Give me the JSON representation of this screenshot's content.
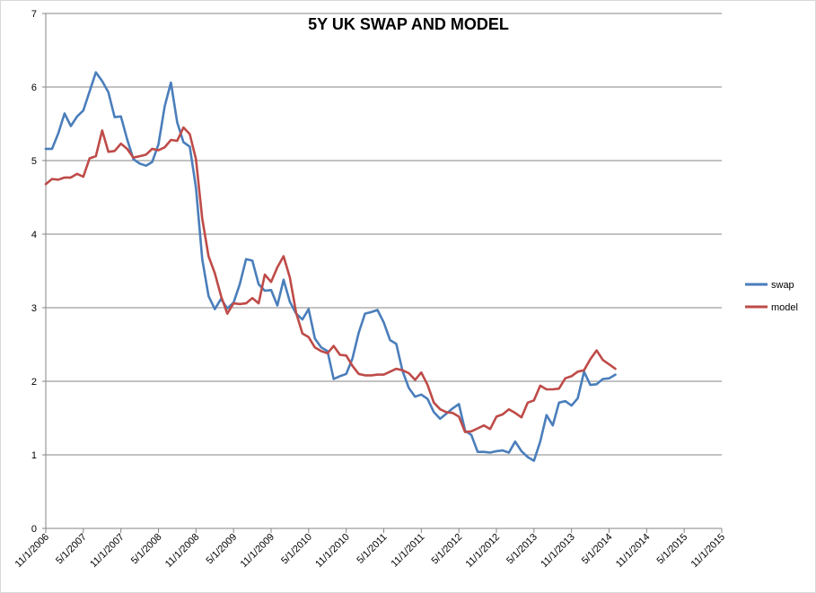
{
  "chart_data": {
    "type": "line",
    "title": "5Y UK SWAP AND MODEL",
    "xlabel": "",
    "ylabel": "",
    "ylim": [
      0,
      7
    ],
    "yticks": [
      0,
      1,
      2,
      3,
      4,
      5,
      6,
      7
    ],
    "xlim": [
      "11/1/2006",
      "11/1/2015"
    ],
    "xticks": [
      "11/1/2006",
      "5/1/2007",
      "11/1/2007",
      "5/1/2008",
      "11/1/2008",
      "5/1/2009",
      "11/1/2009",
      "5/1/2010",
      "11/1/2010",
      "5/1/2011",
      "11/1/2011",
      "5/1/2012",
      "11/1/2012",
      "5/1/2013",
      "11/1/2013",
      "5/1/2014",
      "11/1/2014",
      "5/1/2015",
      "11/1/2015"
    ],
    "grid": true,
    "legend_position": "right",
    "series": [
      {
        "name": "swap",
        "color": "#4a7ebb",
        "values": [
          5.16,
          5.16,
          5.37,
          5.64,
          5.47,
          5.6,
          5.68,
          5.94,
          6.2,
          6.08,
          5.93,
          5.59,
          5.6,
          5.29,
          5.02,
          4.96,
          4.93,
          4.98,
          5.22,
          5.74,
          6.06,
          5.52,
          5.25,
          5.19,
          4.63,
          3.66,
          3.16,
          2.98,
          3.12,
          2.99,
          3.07,
          3.32,
          3.66,
          3.64,
          3.32,
          3.23,
          3.24,
          3.03,
          3.38,
          3.08,
          2.92,
          2.84,
          2.98,
          2.58,
          2.46,
          2.41,
          2.03,
          2.07,
          2.1,
          2.31,
          2.66,
          2.92,
          2.94,
          2.97,
          2.8,
          2.56,
          2.51,
          2.14,
          1.91,
          1.79,
          1.82,
          1.76,
          1.58,
          1.49,
          1.56,
          1.63,
          1.69,
          1.33,
          1.27,
          1.04,
          1.04,
          1.03,
          1.05,
          1.06,
          1.03,
          1.18,
          1.05,
          0.97,
          0.92,
          1.18,
          1.54,
          1.4,
          1.71,
          1.73,
          1.67,
          1.77,
          2.13,
          1.95,
          1.96,
          2.03,
          2.04,
          2.09
        ]
      },
      {
        "name": "model",
        "color": "#be4b48",
        "values": [
          4.68,
          4.75,
          4.74,
          4.77,
          4.77,
          4.82,
          4.78,
          5.03,
          5.06,
          5.41,
          5.12,
          5.13,
          5.23,
          5.16,
          5.04,
          5.06,
          5.08,
          5.16,
          5.14,
          5.18,
          5.28,
          5.27,
          5.45,
          5.36,
          5.02,
          4.21,
          3.7,
          3.47,
          3.16,
          2.92,
          3.06,
          3.05,
          3.06,
          3.13,
          3.06,
          3.45,
          3.35,
          3.55,
          3.7,
          3.41,
          2.93,
          2.65,
          2.6,
          2.46,
          2.41,
          2.38,
          2.48,
          2.36,
          2.35,
          2.21,
          2.1,
          2.08,
          2.08,
          2.09,
          2.09,
          2.13,
          2.17,
          2.15,
          2.11,
          2.02,
          2.12,
          1.95,
          1.71,
          1.62,
          1.58,
          1.57,
          1.52,
          1.31,
          1.32,
          1.36,
          1.4,
          1.35,
          1.52,
          1.55,
          1.62,
          1.57,
          1.51,
          1.71,
          1.74,
          1.94,
          1.89,
          1.89,
          1.9,
          2.04,
          2.07,
          2.13,
          2.15,
          2.3,
          2.42,
          2.29,
          2.23,
          2.17
        ]
      }
    ]
  }
}
